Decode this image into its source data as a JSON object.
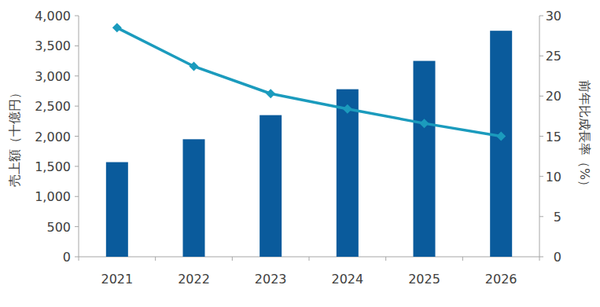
{
  "chart_data": {
    "type": "bar",
    "y_label": "売上額（十億円）",
    "y2_label": "前年比成長率（%）",
    "categories": [
      "2021",
      "2022",
      "2023",
      "2024",
      "2025",
      "2026"
    ],
    "series": [
      {
        "type": "bar",
        "color": "#0a5b9c",
        "values": [
          1570,
          1950,
          2350,
          2780,
          3250,
          3750
        ]
      },
      {
        "type": "line",
        "axis": "y2",
        "color": "#1b9bbd",
        "marker": "diamond",
        "line_style": "solid",
        "values": [
          28.5,
          23.7,
          20.3,
          18.4,
          16.6,
          15.0
        ]
      }
    ],
    "ylim": [
      0,
      4000
    ],
    "yticks": [
      0,
      500,
      {
        "value": 1000,
        "label": "1,000"
      },
      {
        "value": 1500,
        "label": "1,500"
      },
      {
        "value": 2000,
        "label": "2,000"
      },
      {
        "value": 2500,
        "label": "2,500"
      },
      {
        "value": 3000,
        "label": "3,000"
      },
      {
        "value": 3500,
        "label": "3,500"
      },
      {
        "value": 4000,
        "label": "4,000"
      }
    ],
    "y2lim": [
      0,
      30
    ],
    "y2ticks": [
      0,
      5,
      10,
      15,
      20,
      25,
      30
    ],
    "grid": false
  }
}
